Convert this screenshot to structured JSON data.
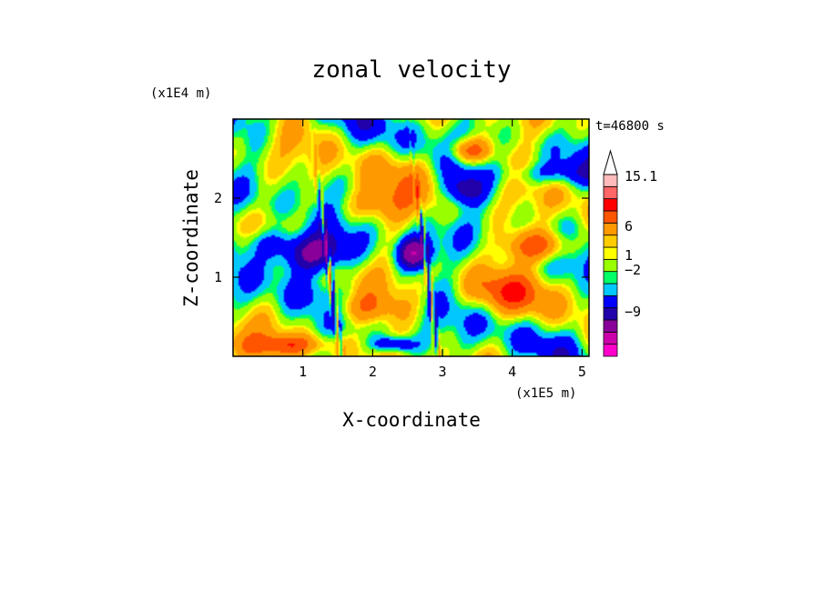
{
  "chart_data": {
    "type": "heatmap",
    "title": "zonal velocity",
    "xlabel": "X-coordinate",
    "ylabel": "Z-coordinate",
    "x_unit": "(x1E5 m)",
    "y_unit": "(x1E4 m)",
    "time_label": "t=46800 s",
    "xlim": [
      0,
      5.1
    ],
    "ylim": [
      0,
      3.0
    ],
    "x_ticks": [
      {
        "value": 1,
        "label": "1"
      },
      {
        "value": 2,
        "label": "2"
      },
      {
        "value": 3,
        "label": "3"
      },
      {
        "value": 4,
        "label": "4"
      },
      {
        "value": 5,
        "label": "5"
      }
    ],
    "y_ticks": [
      {
        "value": 1,
        "label": "1"
      },
      {
        "value": 2,
        "label": "2"
      }
    ],
    "colorbar": {
      "labels": [
        "15.1",
        "6",
        "1",
        "−2",
        "−9"
      ],
      "levels": [
        -16,
        -12,
        -9,
        -6,
        -4,
        -2,
        -1,
        -0.5,
        0.5,
        1,
        2,
        4,
        6,
        8,
        11,
        15.1
      ],
      "colors": [
        "#ff00cc",
        "#cc00aa",
        "#880099",
        "#2200aa",
        "#0000ff",
        "#00c8ff",
        "#00ff66",
        "#99ff00",
        "#ffff00",
        "#ffcc00",
        "#ff9900",
        "#ff5500",
        "#ff0000",
        "#ff6666",
        "#ffbbbb"
      ],
      "extend": "max"
    },
    "field_features": [
      {
        "x": 1.1,
        "z": 1.3,
        "value": -9,
        "sx": 0.5,
        "sz": 0.25
      },
      {
        "x": 0.5,
        "z": 1.45,
        "value": -4,
        "sx": 0.4,
        "sz": 0.2
      },
      {
        "x": 2.6,
        "z": 1.3,
        "value": -9,
        "sx": 0.25,
        "sz": 0.2
      },
      {
        "x": 3.3,
        "z": 2.1,
        "value": -5,
        "sx": 0.3,
        "sz": 0.2
      },
      {
        "x": 3.4,
        "z": 2.6,
        "value": 6,
        "sx": 0.3,
        "sz": 0.15
      },
      {
        "x": 4.4,
        "z": 1.4,
        "value": 6,
        "sx": 0.5,
        "sz": 0.2
      },
      {
        "x": 2.0,
        "z": 1.9,
        "value": 4,
        "sx": 0.6,
        "sz": 0.25
      },
      {
        "x": 1.8,
        "z": 0.6,
        "value": 4,
        "sx": 0.5,
        "sz": 0.2
      },
      {
        "x": 3.9,
        "z": 0.8,
        "value": 3,
        "sx": 0.7,
        "sz": 0.25
      },
      {
        "x": 4.5,
        "z": 2.3,
        "value": -3,
        "sx": 0.6,
        "sz": 0.15
      },
      {
        "x": 0.8,
        "z": 0.15,
        "value": 4,
        "sx": 0.6,
        "sz": 0.12
      },
      {
        "x": 2.3,
        "z": 0.15,
        "value": -5,
        "sx": 0.3,
        "sz": 0.1
      }
    ]
  }
}
